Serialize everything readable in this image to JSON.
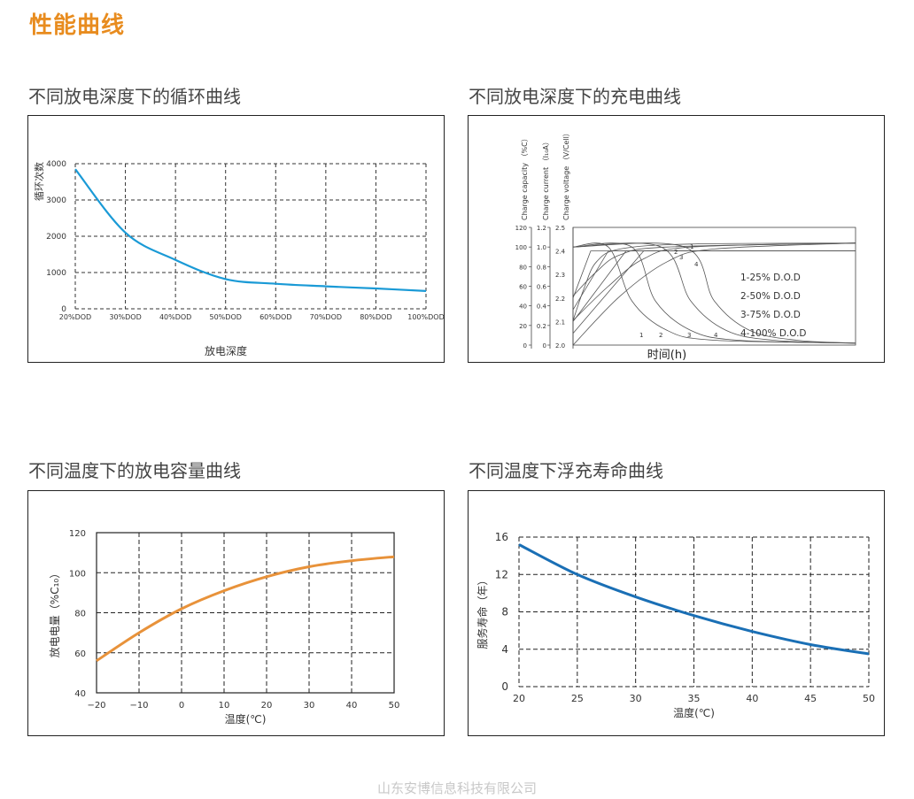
{
  "page": {
    "title": "性能曲线",
    "footer": "山东安博信息科技有限公司"
  },
  "sections": [
    {
      "title": "不同放电深度下的循环曲线"
    },
    {
      "title": "不同放电深度下的充电曲线"
    },
    {
      "title": "不同温度下的放电容量曲线"
    },
    {
      "title": "不同温度下浮充寿命曲线"
    }
  ],
  "chart_data": [
    {
      "type": "line",
      "xlabel": "放电深度",
      "ylabel": "循环次数",
      "categories": [
        "20%DOD",
        "30%DOD",
        "40%DOD",
        "50%DOD",
        "60%DOD",
        "70%DOD",
        "80%DOD",
        "100%DOD"
      ],
      "yticks": [
        "0",
        "1000",
        "2000",
        "3000",
        "4000"
      ],
      "ylim": [
        0,
        4000
      ],
      "grid": true,
      "color": "#1a9ad6",
      "series": [
        {
          "values": [
            3850,
            2100,
            1350,
            820,
            690,
            620,
            560,
            490
          ]
        }
      ]
    },
    {
      "type": "line",
      "xlabel": "时间(h)",
      "axis_titles": [
        "Charge capacity （%C）",
        "Charge current （I₁₀A）",
        "Charge voltage （V/Cell）"
      ],
      "capacity_ticks": [
        "120",
        "100",
        "80",
        "60",
        "40",
        "20",
        "0"
      ],
      "current_ticks": [
        "1.2",
        "1.0",
        "0.8",
        "0.6",
        "0.4",
        "0.2",
        "0"
      ],
      "voltage_ticks": [
        "2.5",
        "2.4",
        "2.3",
        "2.2",
        "2.1",
        "2.0"
      ],
      "legend": [
        "1-25% D.O.D",
        "2-50% D.O.D",
        "3-75% D.O.D",
        "4-100% D.O.D"
      ],
      "curve_labels": [
        "1",
        "2",
        "3",
        "4"
      ],
      "grid": false,
      "series": [
        {
          "name": "1",
          "capacity": [
            [
              0,
              25
            ],
            [
              1,
              60
            ],
            [
              2,
              85
            ],
            [
              4,
              98
            ],
            [
              10,
              103
            ],
            [
              24,
              104
            ]
          ],
          "voltage": [
            [
              0,
              2.2
            ],
            [
              1.5,
              2.4
            ],
            [
              24,
              2.4
            ]
          ],
          "current": [
            [
              0,
              1.0
            ],
            [
              3,
              1.0
            ],
            [
              5,
              0.45
            ],
            [
              8,
              0.15
            ],
            [
              12,
              0.05
            ],
            [
              24,
              0.02
            ]
          ]
        },
        {
          "name": "2",
          "capacity": [
            [
              0,
              50
            ],
            [
              2,
              75
            ],
            [
              4,
              92
            ],
            [
              8,
              100
            ],
            [
              24,
              104
            ]
          ],
          "voltage": [
            [
              0,
              2.15
            ],
            [
              3,
              2.4
            ],
            [
              24,
              2.4
            ]
          ],
          "current": [
            [
              0,
              1.0
            ],
            [
              5,
              1.0
            ],
            [
              7,
              0.45
            ],
            [
              10,
              0.15
            ],
            [
              14,
              0.05
            ],
            [
              24,
              0.02
            ]
          ]
        },
        {
          "name": "3",
          "capacity": [
            [
              0,
              25
            ],
            [
              3,
              60
            ],
            [
              6,
              88
            ],
            [
              10,
              100
            ],
            [
              24,
              104
            ]
          ],
          "voltage": [
            [
              0,
              2.1
            ],
            [
              4.5,
              2.4
            ],
            [
              24,
              2.4
            ]
          ],
          "current": [
            [
              0,
              1.0
            ],
            [
              7.5,
              1.0
            ],
            [
              10,
              0.45
            ],
            [
              13,
              0.15
            ],
            [
              17,
              0.05
            ],
            [
              24,
              0.02
            ]
          ]
        },
        {
          "name": "4",
          "capacity": [
            [
              0,
              0
            ],
            [
              4,
              50
            ],
            [
              8,
              85
            ],
            [
              12,
              98
            ],
            [
              24,
              104
            ]
          ],
          "voltage": [
            [
              0,
              2.05
            ],
            [
              6,
              2.4
            ],
            [
              24,
              2.4
            ]
          ],
          "current": [
            [
              0,
              1.0
            ],
            [
              9.5,
              1.0
            ],
            [
              12,
              0.45
            ],
            [
              15,
              0.15
            ],
            [
              19,
              0.05
            ],
            [
              24,
              0.02
            ]
          ]
        }
      ]
    },
    {
      "type": "line",
      "xlabel": "温度(℃)",
      "ylabel": "放电电量（%C₁₀）",
      "x": [
        -20,
        -10,
        0,
        10,
        20,
        30,
        40,
        50
      ],
      "xticks": [
        "−20",
        "−10",
        "0",
        "10",
        "20",
        "30",
        "40",
        "50"
      ],
      "yticks": [
        "40",
        "60",
        "80",
        "100",
        "120"
      ],
      "xlim": [
        -20,
        50
      ],
      "ylim": [
        40,
        120
      ],
      "grid": true,
      "color": "#e8923a",
      "series": [
        {
          "values": [
            56,
            70,
            82,
            91,
            98,
            103,
            106,
            108
          ]
        }
      ]
    },
    {
      "type": "line",
      "xlabel": "温度(℃)",
      "ylabel": "服务寿命（年）",
      "x": [
        20,
        25,
        30,
        35,
        40,
        45,
        50
      ],
      "xticks": [
        "20",
        "25",
        "30",
        "35",
        "40",
        "45",
        "50"
      ],
      "yticks": [
        "0",
        "4",
        "8",
        "12",
        "16"
      ],
      "xlim": [
        20,
        50
      ],
      "ylim": [
        0,
        16
      ],
      "grid": true,
      "color": "#1a6fb5",
      "series": [
        {
          "values": [
            15.2,
            12.0,
            9.6,
            7.6,
            5.9,
            4.5,
            3.5
          ]
        }
      ]
    }
  ]
}
